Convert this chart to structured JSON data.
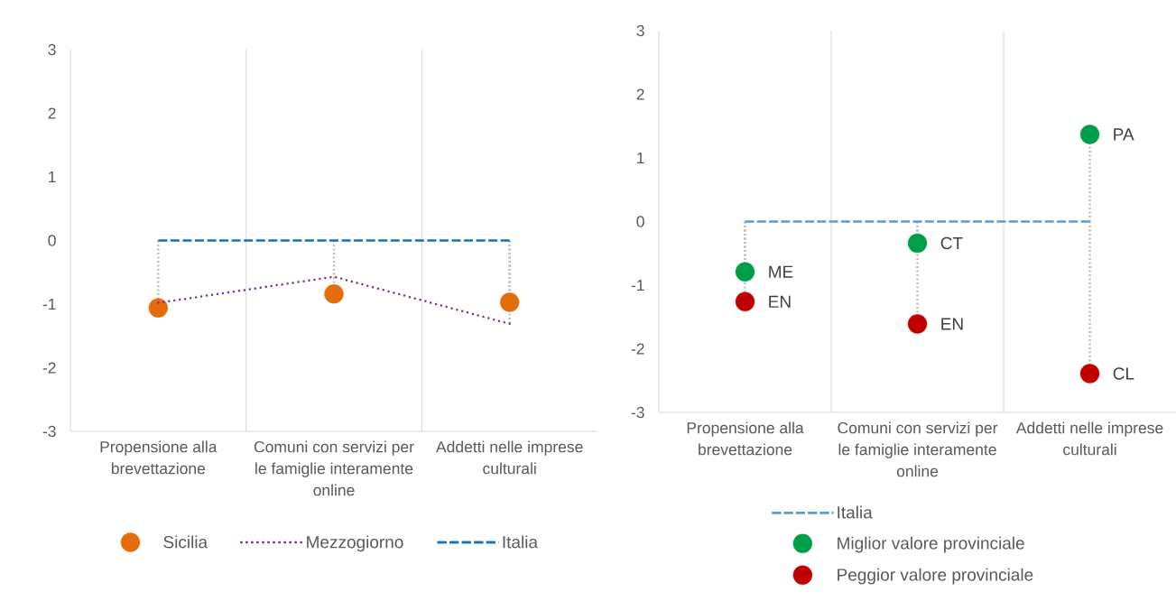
{
  "chart_data": [
    {
      "type": "line",
      "categories": [
        "Propensione alla brevettazione",
        "Comuni con servizi per le famiglie interamente online",
        "Addetti nelle imprese culturali"
      ],
      "series": [
        {
          "name": "Sicilia",
          "type": "lollipop",
          "color": "#E46C0A",
          "marker": "circle",
          "values": [
            -1.06,
            -0.84,
            -0.97
          ]
        },
        {
          "name": "Mezzogiorno",
          "color": "#7030A0",
          "line_style": "dotted",
          "values": [
            -0.98,
            -0.57,
            -1.31
          ]
        },
        {
          "name": "Italia",
          "color": "#0E75B6",
          "line_style": "dashed",
          "values": [
            0,
            0,
            0
          ],
          "errors": [
            null,
            null,
            [
              -1.31,
              0
            ]
          ]
        }
      ],
      "ylim": [
        -3,
        3
      ],
      "yticks": [
        -3,
        -2,
        -1,
        0,
        1,
        2,
        3
      ],
      "grid": "x",
      "legend": "bottom"
    },
    {
      "type": "line",
      "categories": [
        "Propensione alla brevettazione",
        "Comuni con servizi per le famiglie interamente online",
        "Addetti nelle imprese culturali"
      ],
      "series": [
        {
          "name": "Italia",
          "color": "#5B9BD5",
          "line_style": "dashed",
          "values": [
            0,
            0,
            0
          ]
        },
        {
          "name": "Miglior valore provinciale",
          "type": "lollipop",
          "color": "#009E49",
          "marker": "circle",
          "values": [
            -0.79,
            -0.34,
            1.37
          ],
          "value_labels": [
            "ME",
            "CT",
            "PA"
          ]
        },
        {
          "name": "Peggior valore provinciale",
          "type": "lollipop",
          "color": "#C00000",
          "marker": "circle",
          "values": [
            -1.26,
            -1.61,
            -2.39
          ],
          "value_labels": [
            "EN",
            "EN",
            "CL"
          ]
        }
      ],
      "ylim": [
        -3,
        3
      ],
      "yticks": [
        -3,
        -2,
        -1,
        0,
        1,
        2,
        3
      ],
      "grid": "x",
      "legend": "bottom left"
    }
  ]
}
